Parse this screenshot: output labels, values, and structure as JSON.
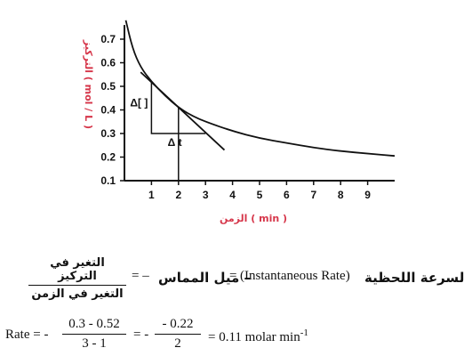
{
  "chart_data": {
    "type": "line",
    "ylabel": "التركيز ( mol / L )",
    "xlabel": "الزمن ( min )",
    "xlim": [
      0,
      10
    ],
    "ylim": [
      0.1,
      0.75
    ],
    "x_ticks": [
      1,
      2,
      3,
      4,
      5,
      6,
      7,
      8,
      9
    ],
    "y_ticks": [
      0.1,
      0.2,
      0.3,
      0.4,
      0.5,
      0.6,
      0.7
    ],
    "y_tick_labels": [
      "0.1",
      "0.2",
      "0.3",
      "0.4",
      "0.5",
      "0.6",
      "0.7"
    ],
    "x_tick_labels": [
      "1",
      "2",
      "3",
      "4",
      "5",
      "6",
      "7",
      "8",
      "9"
    ],
    "grid": false,
    "series": [
      {
        "kind": "curve",
        "x": [
          0.05,
          0.3,
          0.6,
          1.0,
          1.5,
          2.0,
          2.5,
          3.0,
          4.0,
          5.0,
          6.0,
          7.0,
          8.0,
          9.0,
          10.0
        ],
        "y": [
          0.78,
          0.66,
          0.58,
          0.52,
          0.46,
          0.41,
          0.375,
          0.35,
          0.31,
          0.28,
          0.26,
          0.24,
          0.225,
          0.215,
          0.205
        ]
      },
      {
        "kind": "tangent",
        "x": [
          0.6,
          3.7
        ],
        "y": [
          0.56,
          0.23
        ]
      }
    ],
    "annotations": [
      {
        "text": "Δ[ ]",
        "points": {
          "x": [
            1,
            1,
            3
          ],
          "y": [
            0.52,
            0.3,
            0.3
          ]
        }
      },
      {
        "text": "Δ t",
        "points": {
          "x": [
            1,
            3
          ],
          "y": [
            0.3,
            0.3
          ]
        }
      }
    ],
    "marker_line": {
      "x": 2,
      "y_from": 0.1,
      "y_to": 0.41
    }
  },
  "equations": {
    "definition": {
      "label": "السرعة اللحظية",
      "english": "(Instantaneous Rate)",
      "equals1": "=",
      "slope_label": "– ميل المماس",
      "equals2": "= –",
      "numerator": "التغير في التركيز",
      "denominator": "التغير في الزمن"
    },
    "calculation": {
      "prefix": "Rate = -",
      "frac1_num": "0.3 - 0.52",
      "frac1_den": "3 - 1",
      "equals_minus": "= -",
      "frac2_num": "- 0.22",
      "frac2_den": "2",
      "result": "= 0.11 molar min",
      "result_exp": "-1"
    }
  }
}
